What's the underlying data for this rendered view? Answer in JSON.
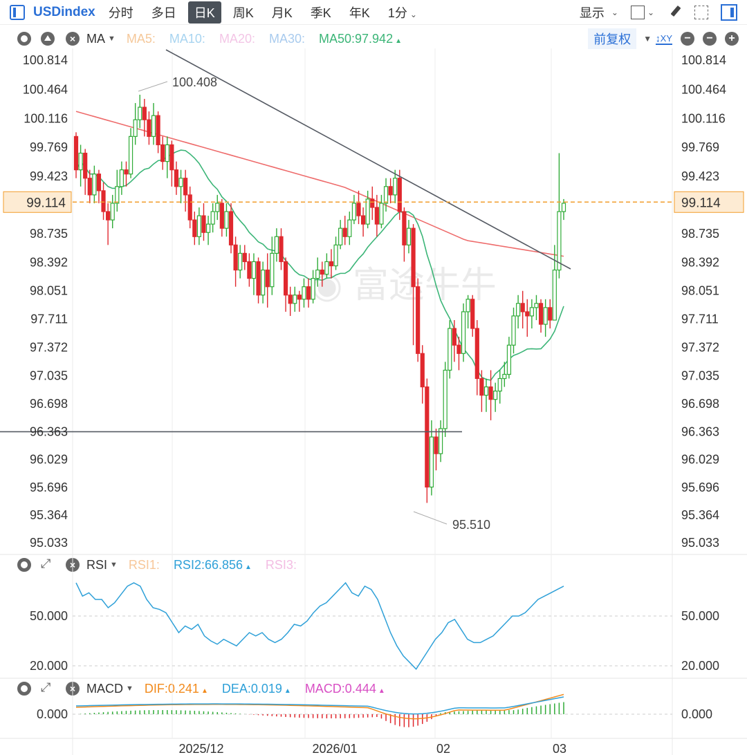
{
  "toolbar": {
    "symbol": "USDindex",
    "periods": [
      "分时",
      "多日",
      "日K",
      "周K",
      "月K",
      "季K",
      "年K",
      "1分"
    ],
    "active_period": "日K",
    "display_label": "显示"
  },
  "main_legend": {
    "indicator": "MA",
    "items": [
      {
        "label": "MA5:",
        "color": "#f5c89a"
      },
      {
        "label": "MA10:",
        "color": "#a8d4f0"
      },
      {
        "label": "MA20:",
        "color": "#f3c6e6"
      },
      {
        "label": "MA30:",
        "color": "#a9cbee"
      },
      {
        "label": "MA50:97.942",
        "color": "#3bb577"
      }
    ],
    "adjust_label": "前复权"
  },
  "rsi_legend": {
    "indicator": "RSI",
    "items": [
      {
        "label": "RSI1:",
        "color": "#f7c79a"
      },
      {
        "label": "RSI2:66.856",
        "color": "#2ea0d8"
      },
      {
        "label": "RSI3:",
        "color": "#f3bde3"
      }
    ]
  },
  "macd_legend": {
    "indicator": "MACD",
    "items": [
      {
        "label": "DIF:0.241",
        "color": "#f28a1c"
      },
      {
        "label": "DEA:0.019",
        "color": "#2ea0d8"
      },
      {
        "label": "MACD:0.444",
        "color": "#d84fc4"
      }
    ]
  },
  "chart_data": {
    "type": "candlestick",
    "price_ticks": [
      "100.814",
      "100.464",
      "100.116",
      "99.769",
      "99.423",
      "99.114",
      "98.735",
      "98.392",
      "98.051",
      "97.711",
      "97.372",
      "97.035",
      "96.698",
      "96.363",
      "96.029",
      "95.696",
      "95.364",
      "95.033"
    ],
    "current_price": "99.114",
    "high_marker": "100.408",
    "low_marker": "95.510",
    "support_level": 96.363,
    "rsi_ticks": [
      "50.000",
      "20.000"
    ],
    "macd_ticks": [
      "0.000"
    ],
    "x_labels": [
      "2025/12",
      "2026/01",
      "02",
      "03"
    ],
    "candles": [
      [
        99.9,
        99.5,
        99.95,
        99.4
      ],
      [
        99.5,
        99.7,
        99.8,
        99.3
      ],
      [
        99.7,
        99.4,
        99.75,
        99.2
      ],
      [
        99.4,
        99.2,
        99.5,
        99.1
      ],
      [
        99.2,
        99.45,
        99.55,
        99.1
      ],
      [
        99.45,
        99.25,
        99.5,
        99.1
      ],
      [
        99.25,
        99.0,
        99.35,
        98.9
      ],
      [
        99.0,
        98.9,
        99.1,
        98.6
      ],
      [
        98.9,
        99.1,
        99.2,
        98.8
      ],
      [
        99.1,
        99.3,
        99.5,
        99.0
      ],
      [
        99.3,
        99.5,
        99.6,
        99.2
      ],
      [
        99.5,
        99.45,
        99.6,
        99.3
      ],
      [
        99.45,
        99.9,
        100.0,
        99.4
      ],
      [
        99.9,
        100.1,
        100.3,
        99.8
      ],
      [
        100.1,
        100.25,
        100.4,
        100.0
      ],
      [
        100.25,
        100.1,
        100.35,
        99.9
      ],
      [
        100.1,
        99.9,
        100.2,
        99.8
      ],
      [
        99.9,
        100.15,
        100.3,
        99.8
      ],
      [
        100.15,
        99.8,
        100.2,
        99.7
      ],
      [
        99.8,
        99.6,
        99.9,
        99.5
      ],
      [
        99.6,
        99.8,
        99.9,
        99.4
      ],
      [
        99.8,
        99.5,
        99.85,
        99.3
      ],
      [
        99.5,
        99.3,
        99.6,
        99.2
      ],
      [
        99.3,
        99.4,
        99.5,
        99.1
      ],
      [
        99.4,
        99.2,
        99.5,
        99.0
      ],
      [
        99.2,
        98.9,
        99.3,
        98.8
      ],
      [
        98.9,
        98.7,
        99.0,
        98.6
      ],
      [
        98.7,
        98.95,
        99.05,
        98.6
      ],
      [
        98.95,
        98.75,
        99.1,
        98.65
      ],
      [
        98.75,
        98.85,
        98.95,
        98.6
      ],
      [
        98.85,
        99.0,
        99.1,
        98.75
      ],
      [
        99.0,
        99.1,
        99.2,
        98.9
      ],
      [
        99.1,
        98.8,
        99.15,
        98.7
      ],
      [
        98.8,
        99.0,
        99.1,
        98.7
      ],
      [
        99.0,
        98.6,
        99.1,
        98.5
      ],
      [
        98.6,
        98.3,
        98.7,
        98.1
      ],
      [
        98.3,
        98.5,
        98.6,
        98.2
      ],
      [
        98.5,
        98.4,
        98.6,
        98.3
      ],
      [
        98.4,
        98.2,
        98.5,
        98.1
      ],
      [
        98.2,
        98.4,
        98.5,
        98.0
      ],
      [
        98.4,
        98.0,
        98.45,
        97.9
      ],
      [
        98.0,
        98.3,
        98.4,
        97.9
      ],
      [
        98.3,
        98.1,
        98.5,
        97.85
      ],
      [
        98.1,
        98.5,
        98.7,
        98.0
      ],
      [
        98.5,
        98.7,
        98.8,
        98.4
      ],
      [
        98.7,
        98.4,
        98.8,
        98.3
      ],
      [
        98.4,
        98.0,
        98.45,
        97.8
      ],
      [
        98.0,
        97.9,
        98.1,
        97.75
      ],
      [
        97.9,
        98.0,
        98.1,
        97.8
      ],
      [
        98.0,
        97.95,
        98.05,
        97.8
      ],
      [
        97.95,
        98.1,
        98.2,
        97.85
      ],
      [
        98.1,
        97.95,
        98.2,
        97.85
      ],
      [
        97.95,
        98.2,
        98.3,
        97.9
      ],
      [
        98.2,
        98.3,
        98.45,
        98.1
      ],
      [
        98.3,
        98.25,
        98.4,
        98.1
      ],
      [
        98.25,
        98.4,
        98.5,
        98.2
      ],
      [
        98.4,
        98.35,
        98.55,
        98.2
      ],
      [
        98.35,
        98.6,
        98.7,
        98.3
      ],
      [
        98.6,
        98.8,
        98.9,
        98.55
      ],
      [
        98.8,
        98.7,
        98.95,
        98.6
      ],
      [
        98.7,
        98.9,
        99.0,
        98.6
      ],
      [
        98.9,
        99.1,
        99.2,
        98.85
      ],
      [
        99.1,
        98.95,
        99.25,
        98.85
      ],
      [
        98.95,
        98.85,
        99.05,
        98.7
      ],
      [
        98.85,
        99.15,
        99.25,
        98.8
      ],
      [
        99.15,
        99.05,
        99.3,
        98.9
      ],
      [
        99.05,
        98.85,
        99.2,
        98.7
      ],
      [
        98.85,
        99.1,
        99.2,
        98.8
      ],
      [
        99.1,
        99.3,
        99.4,
        99.0
      ],
      [
        99.3,
        99.2,
        99.4,
        99.1
      ],
      [
        99.2,
        99.4,
        99.5,
        99.1
      ],
      [
        99.4,
        99.0,
        99.5,
        98.9
      ],
      [
        99.0,
        98.6,
        99.05,
        98.4
      ],
      [
        98.6,
        98.8,
        98.9,
        98.5
      ],
      [
        98.8,
        98.1,
        98.85,
        97.4
      ],
      [
        98.1,
        97.3,
        98.2,
        97.2
      ],
      [
        97.3,
        96.9,
        97.4,
        96.7
      ],
      [
        96.9,
        95.7,
        97.0,
        95.51
      ],
      [
        95.7,
        96.3,
        96.5,
        95.6
      ],
      [
        96.3,
        96.1,
        96.4,
        95.9
      ],
      [
        96.1,
        96.4,
        96.5,
        96.0
      ],
      [
        96.4,
        97.1,
        97.2,
        96.3
      ],
      [
        97.1,
        97.6,
        97.7,
        97.0
      ],
      [
        97.6,
        97.4,
        97.7,
        97.2
      ],
      [
        97.4,
        97.3,
        97.5,
        97.1
      ],
      [
        97.3,
        97.8,
        97.9,
        97.2
      ],
      [
        97.8,
        97.95,
        98.0,
        97.6
      ],
      [
        97.95,
        97.6,
        98.0,
        97.5
      ],
      [
        97.6,
        97.0,
        97.7,
        96.8
      ],
      [
        97.0,
        96.8,
        97.1,
        96.6
      ],
      [
        96.8,
        96.9,
        97.0,
        96.6
      ],
      [
        96.9,
        96.75,
        97.1,
        96.5
      ],
      [
        96.75,
        96.85,
        96.95,
        96.6
      ],
      [
        96.85,
        97.0,
        97.1,
        96.7
      ],
      [
        97.0,
        97.05,
        97.2,
        96.9
      ],
      [
        97.05,
        97.4,
        97.5,
        97.0
      ],
      [
        97.4,
        97.75,
        97.85,
        97.3
      ],
      [
        97.75,
        97.9,
        98.0,
        97.6
      ],
      [
        97.9,
        97.8,
        98.05,
        97.6
      ],
      [
        97.8,
        97.75,
        97.95,
        97.5
      ],
      [
        97.75,
        97.85,
        97.95,
        97.6
      ],
      [
        97.85,
        97.9,
        98.0,
        97.7
      ],
      [
        97.9,
        97.65,
        97.95,
        97.55
      ],
      [
        97.65,
        97.85,
        97.95,
        97.5
      ],
      [
        97.85,
        97.7,
        97.95,
        97.6
      ],
      [
        97.7,
        98.3,
        98.6,
        97.7
      ],
      [
        98.3,
        99.0,
        99.7,
        98.2
      ],
      [
        99.0,
        99.1,
        99.15,
        98.9
      ]
    ]
  }
}
